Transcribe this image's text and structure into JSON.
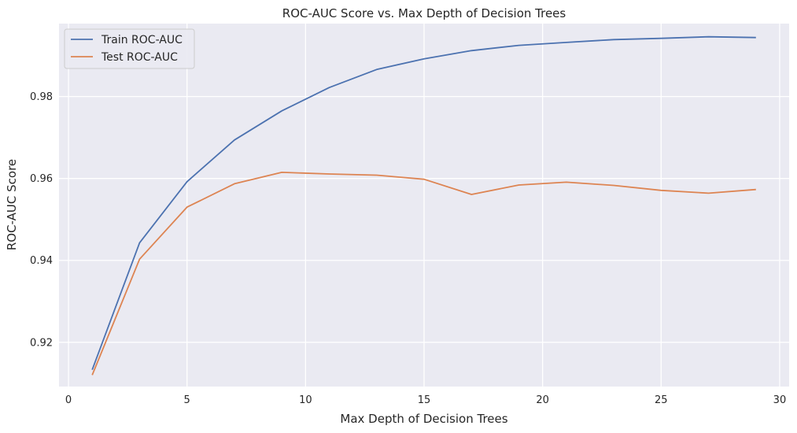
{
  "chart_data": {
    "type": "line",
    "title": "ROC-AUC Score vs. Max Depth of Decision Trees",
    "xlabel": "Max Depth of Decision Trees",
    "ylabel": "ROC-AUC Score",
    "xlim": [
      -0.4,
      30.4
    ],
    "ylim": [
      0.9092,
      0.9978
    ],
    "xticks": [
      0,
      5,
      10,
      15,
      20,
      25,
      30
    ],
    "yticks": [
      0.92,
      0.94,
      0.96,
      0.98
    ],
    "xtick_labels": [
      "0",
      "5",
      "10",
      "15",
      "20",
      "25",
      "30"
    ],
    "ytick_labels": [
      "0.92",
      "0.94",
      "0.96",
      "0.98"
    ],
    "grid": true,
    "legend": "top-left",
    "x": [
      1,
      3,
      5,
      7,
      9,
      11,
      13,
      15,
      17,
      19,
      21,
      23,
      25,
      27,
      29
    ],
    "series": [
      {
        "name": "Train ROC-AUC",
        "color": "#4c72b0",
        "values": [
          0.9133,
          0.9443,
          0.9592,
          0.9694,
          0.9765,
          0.9822,
          0.9866,
          0.9892,
          0.9912,
          0.9925,
          0.9932,
          0.9939,
          0.9942,
          0.9946,
          0.9944
        ]
      },
      {
        "name": "Test ROC-AUC",
        "color": "#dd8452",
        "values": [
          0.912,
          0.9403,
          0.953,
          0.9587,
          0.9615,
          0.9611,
          0.9608,
          0.9598,
          0.9561,
          0.9584,
          0.9591,
          0.9583,
          0.9571,
          0.9564,
          0.9573
        ]
      }
    ]
  }
}
